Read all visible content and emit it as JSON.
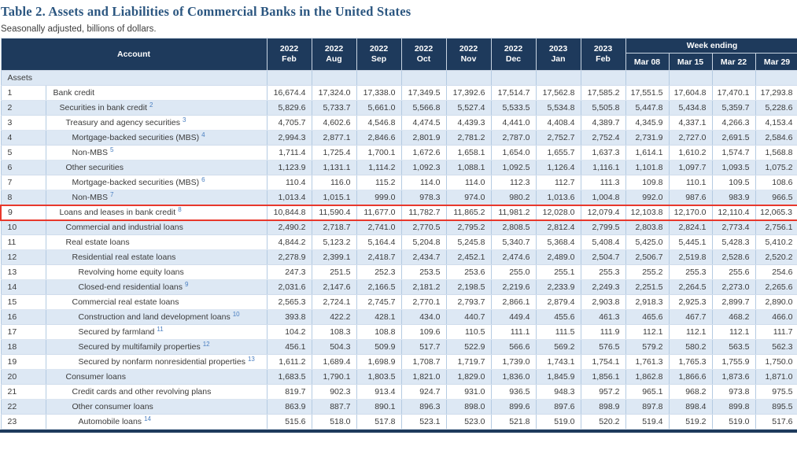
{
  "colors": {
    "header_bg": "#1e3a5c",
    "stripe": "#dde8f4",
    "grid": "#b5cbe2",
    "highlight_border": "#e8382c",
    "title_text": "#2b5680",
    "footnote_link": "#4a7fc1"
  },
  "chart_data": {
    "type": "table",
    "title": "Table 2. Assets and Liabilities of Commercial Banks in the United States",
    "subtitle": "Seasonally adjusted, billions of dollars.",
    "account_header": "Account",
    "week_ending_label": "Week ending",
    "month_columns": [
      {
        "year": "2022",
        "month": "Feb"
      },
      {
        "year": "2022",
        "month": "Aug"
      },
      {
        "year": "2022",
        "month": "Sep"
      },
      {
        "year": "2022",
        "month": "Oct"
      },
      {
        "year": "2022",
        "month": "Nov"
      },
      {
        "year": "2022",
        "month": "Dec"
      },
      {
        "year": "2023",
        "month": "Jan"
      },
      {
        "year": "2023",
        "month": "Feb"
      }
    ],
    "week_columns": [
      "Mar 08",
      "Mar 15",
      "Mar 22",
      "Mar 29"
    ],
    "section_label": "Assets",
    "rows": [
      {
        "num": "1",
        "label": "Bank credit",
        "sup": "",
        "indent": 0,
        "highlight": false,
        "values": [
          "16,674.4",
          "17,324.0",
          "17,338.0",
          "17,349.5",
          "17,392.6",
          "17,514.7",
          "17,562.8",
          "17,585.2",
          "17,551.5",
          "17,604.8",
          "17,470.1",
          "17,293.8"
        ]
      },
      {
        "num": "2",
        "label": "Securities in bank credit",
        "sup": "2",
        "indent": 1,
        "highlight": false,
        "values": [
          "5,829.6",
          "5,733.7",
          "5,661.0",
          "5,566.8",
          "5,527.4",
          "5,533.5",
          "5,534.8",
          "5,505.8",
          "5,447.8",
          "5,434.8",
          "5,359.7",
          "5,228.6"
        ]
      },
      {
        "num": "3",
        "label": "Treasury and agency securities",
        "sup": "3",
        "indent": 2,
        "highlight": false,
        "values": [
          "4,705.7",
          "4,602.6",
          "4,546.8",
          "4,474.5",
          "4,439.3",
          "4,441.0",
          "4,408.4",
          "4,389.7",
          "4,345.9",
          "4,337.1",
          "4,266.3",
          "4,153.4"
        ]
      },
      {
        "num": "4",
        "label": "Mortgage-backed securities (MBS)",
        "sup": "4",
        "indent": 3,
        "highlight": false,
        "values": [
          "2,994.3",
          "2,877.1",
          "2,846.6",
          "2,801.9",
          "2,781.2",
          "2,787.0",
          "2,752.7",
          "2,752.4",
          "2,731.9",
          "2,727.0",
          "2,691.5",
          "2,584.6"
        ]
      },
      {
        "num": "5",
        "label": "Non-MBS",
        "sup": "5",
        "indent": 3,
        "highlight": false,
        "values": [
          "1,711.4",
          "1,725.4",
          "1,700.1",
          "1,672.6",
          "1,658.1",
          "1,654.0",
          "1,655.7",
          "1,637.3",
          "1,614.1",
          "1,610.2",
          "1,574.7",
          "1,568.8"
        ]
      },
      {
        "num": "6",
        "label": "Other securities",
        "sup": "",
        "indent": 2,
        "highlight": false,
        "values": [
          "1,123.9",
          "1,131.1",
          "1,114.2",
          "1,092.3",
          "1,088.1",
          "1,092.5",
          "1,126.4",
          "1,116.1",
          "1,101.8",
          "1,097.7",
          "1,093.5",
          "1,075.2"
        ]
      },
      {
        "num": "7",
        "label": "Mortgage-backed securities (MBS)",
        "sup": "6",
        "indent": 3,
        "highlight": false,
        "values": [
          "110.4",
          "116.0",
          "115.2",
          "114.0",
          "114.0",
          "112.3",
          "112.7",
          "111.3",
          "109.8",
          "110.1",
          "109.5",
          "108.6"
        ]
      },
      {
        "num": "8",
        "label": "Non-MBS",
        "sup": "7",
        "indent": 3,
        "highlight": false,
        "values": [
          "1,013.4",
          "1,015.1",
          "999.0",
          "978.3",
          "974.0",
          "980.2",
          "1,013.6",
          "1,004.8",
          "992.0",
          "987.6",
          "983.9",
          "966.5"
        ]
      },
      {
        "num": "9",
        "label": "Loans and leases in bank credit",
        "sup": "8",
        "indent": 1,
        "highlight": true,
        "values": [
          "10,844.8",
          "11,590.4",
          "11,677.0",
          "11,782.7",
          "11,865.2",
          "11,981.2",
          "12,028.0",
          "12,079.4",
          "12,103.8",
          "12,170.0",
          "12,110.4",
          "12,065.3"
        ]
      },
      {
        "num": "10",
        "label": "Commercial and industrial loans",
        "sup": "",
        "indent": 2,
        "highlight": false,
        "values": [
          "2,490.2",
          "2,718.7",
          "2,741.0",
          "2,770.5",
          "2,795.2",
          "2,808.5",
          "2,812.4",
          "2,799.5",
          "2,803.8",
          "2,824.1",
          "2,773.4",
          "2,756.1"
        ]
      },
      {
        "num": "11",
        "label": "Real estate loans",
        "sup": "",
        "indent": 2,
        "highlight": false,
        "values": [
          "4,844.2",
          "5,123.2",
          "5,164.4",
          "5,204.8",
          "5,245.8",
          "5,340.7",
          "5,368.4",
          "5,408.4",
          "5,425.0",
          "5,445.1",
          "5,428.3",
          "5,410.2"
        ]
      },
      {
        "num": "12",
        "label": "Residential real estate loans",
        "sup": "",
        "indent": 3,
        "highlight": false,
        "values": [
          "2,278.9",
          "2,399.1",
          "2,418.7",
          "2,434.7",
          "2,452.1",
          "2,474.6",
          "2,489.0",
          "2,504.7",
          "2,506.7",
          "2,519.8",
          "2,528.6",
          "2,520.2"
        ]
      },
      {
        "num": "13",
        "label": "Revolving home equity loans",
        "sup": "",
        "indent": 4,
        "highlight": false,
        "values": [
          "247.3",
          "251.5",
          "252.3",
          "253.5",
          "253.6",
          "255.0",
          "255.1",
          "255.3",
          "255.2",
          "255.3",
          "255.6",
          "254.6"
        ]
      },
      {
        "num": "14",
        "label": "Closed-end residential loans",
        "sup": "9",
        "indent": 4,
        "highlight": false,
        "values": [
          "2,031.6",
          "2,147.6",
          "2,166.5",
          "2,181.2",
          "2,198.5",
          "2,219.6",
          "2,233.9",
          "2,249.3",
          "2,251.5",
          "2,264.5",
          "2,273.0",
          "2,265.6"
        ]
      },
      {
        "num": "15",
        "label": "Commercial real estate loans",
        "sup": "",
        "indent": 3,
        "highlight": false,
        "values": [
          "2,565.3",
          "2,724.1",
          "2,745.7",
          "2,770.1",
          "2,793.7",
          "2,866.1",
          "2,879.4",
          "2,903.8",
          "2,918.3",
          "2,925.3",
          "2,899.7",
          "2,890.0"
        ]
      },
      {
        "num": "16",
        "label": "Construction and land development loans",
        "sup": "10",
        "indent": 4,
        "highlight": false,
        "values": [
          "393.8",
          "422.2",
          "428.1",
          "434.0",
          "440.7",
          "449.4",
          "455.6",
          "461.3",
          "465.6",
          "467.7",
          "468.2",
          "466.0"
        ]
      },
      {
        "num": "17",
        "label": "Secured by farmland",
        "sup": "11",
        "indent": 4,
        "highlight": false,
        "values": [
          "104.2",
          "108.3",
          "108.8",
          "109.6",
          "110.5",
          "111.1",
          "111.5",
          "111.9",
          "112.1",
          "112.1",
          "112.1",
          "111.7"
        ]
      },
      {
        "num": "18",
        "label": "Secured by multifamily properties",
        "sup": "12",
        "indent": 4,
        "highlight": false,
        "values": [
          "456.1",
          "504.3",
          "509.9",
          "517.7",
          "522.9",
          "566.6",
          "569.2",
          "576.5",
          "579.2",
          "580.2",
          "563.5",
          "562.3"
        ]
      },
      {
        "num": "19",
        "label": "Secured by nonfarm nonresidential properties",
        "sup": "13",
        "indent": 4,
        "highlight": false,
        "values": [
          "1,611.2",
          "1,689.4",
          "1,698.9",
          "1,708.7",
          "1,719.7",
          "1,739.0",
          "1,743.1",
          "1,754.1",
          "1,761.3",
          "1,765.3",
          "1,755.9",
          "1,750.0"
        ]
      },
      {
        "num": "20",
        "label": "Consumer loans",
        "sup": "",
        "indent": 2,
        "highlight": false,
        "values": [
          "1,683.5",
          "1,790.1",
          "1,803.5",
          "1,821.0",
          "1,829.0",
          "1,836.0",
          "1,845.9",
          "1,856.1",
          "1,862.8",
          "1,866.6",
          "1,873.6",
          "1,871.0"
        ]
      },
      {
        "num": "21",
        "label": "Credit cards and other revolving plans",
        "sup": "",
        "indent": 3,
        "highlight": false,
        "values": [
          "819.7",
          "902.3",
          "913.4",
          "924.7",
          "931.0",
          "936.5",
          "948.3",
          "957.2",
          "965.1",
          "968.2",
          "973.8",
          "975.5"
        ]
      },
      {
        "num": "22",
        "label": "Other consumer loans",
        "sup": "",
        "indent": 3,
        "highlight": false,
        "values": [
          "863.9",
          "887.7",
          "890.1",
          "896.3",
          "898.0",
          "899.6",
          "897.6",
          "898.9",
          "897.8",
          "898.4",
          "899.8",
          "895.5"
        ]
      },
      {
        "num": "23",
        "label": "Automobile loans",
        "sup": "14",
        "indent": 4,
        "highlight": false,
        "values": [
          "515.6",
          "518.0",
          "517.8",
          "523.1",
          "523.0",
          "521.8",
          "519.0",
          "520.2",
          "519.4",
          "519.2",
          "519.0",
          "517.6"
        ]
      }
    ]
  }
}
